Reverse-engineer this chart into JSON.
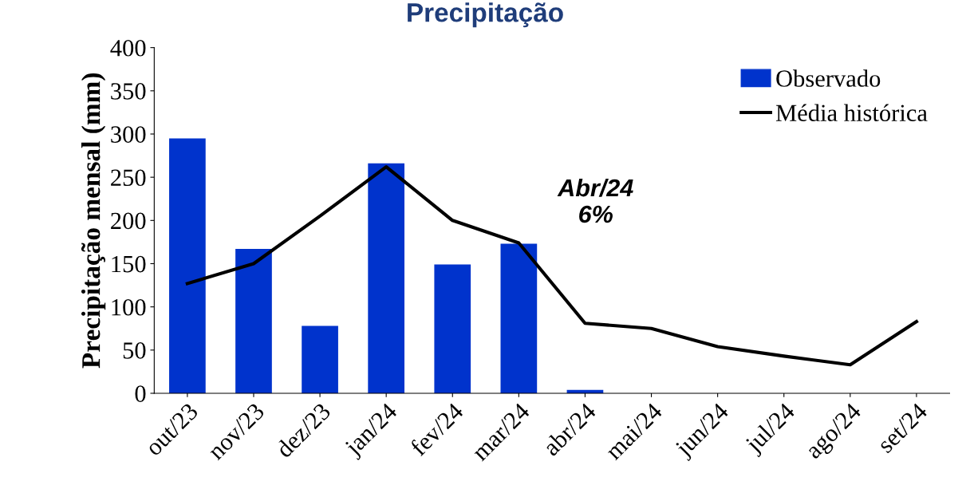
{
  "chart_data": {
    "type": "bar",
    "title": "Precipitação",
    "ylabel": "Precipitação mensal (mm)",
    "categories": [
      "out/23",
      "nov/23",
      "dez/23",
      "jan/24",
      "fev/24",
      "mar/24",
      "abr/24",
      "mai/24",
      "jun/24",
      "jul/24",
      "ago/24",
      "set/24"
    ],
    "series": [
      {
        "name": "Observado",
        "color": "#0033cc",
        "values": [
          295,
          167,
          78,
          266,
          149,
          173,
          4,
          null,
          null,
          null,
          null,
          null
        ]
      },
      {
        "name": "Média histórica",
        "type": "line",
        "color": "#000000",
        "values": [
          127,
          150,
          205,
          262,
          200,
          174,
          81,
          75,
          54,
          43,
          33,
          83
        ]
      }
    ],
    "ylim": [
      0,
      400
    ],
    "yticks": [
      0,
      50,
      100,
      150,
      200,
      250,
      300,
      350,
      400
    ],
    "annotations": [
      "Abr/24\n6%"
    ],
    "legend": "top right",
    "grid": false,
    "marker": "none",
    "line_style": "solid"
  }
}
